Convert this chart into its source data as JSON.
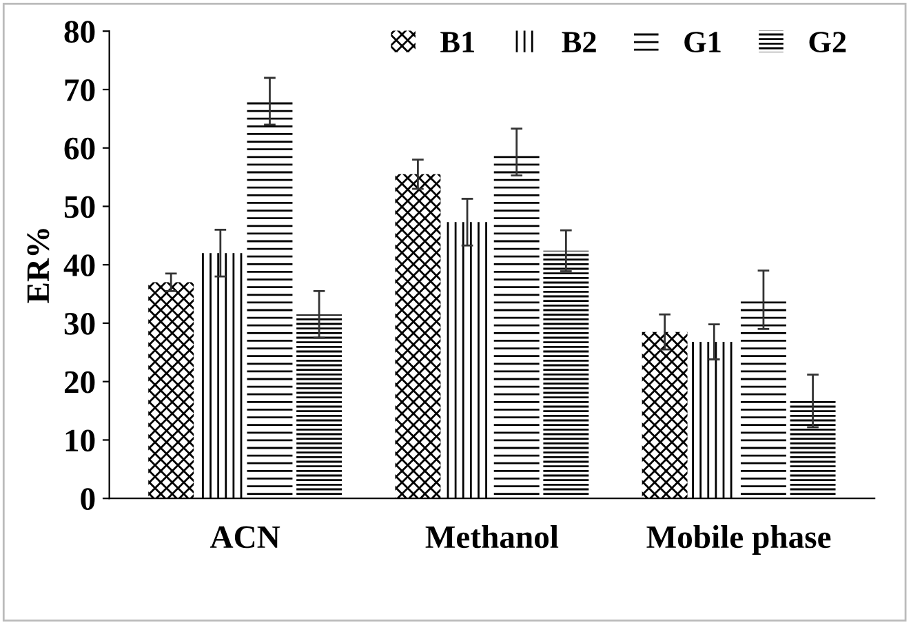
{
  "chart_data": {
    "type": "bar",
    "ylabel": "ER%",
    "categories": [
      "ACN",
      "Methanol",
      "Mobile phase"
    ],
    "series": [
      {
        "name": "B1",
        "color": "#000000",
        "values": [
          37,
          55.5,
          28.5
        ],
        "errors": [
          1.5,
          2.5,
          3
        ]
      },
      {
        "name": "B2",
        "color": "#000000",
        "values": [
          42,
          47.3,
          26.8
        ],
        "errors": [
          4,
          4,
          3
        ]
      },
      {
        "name": "G1",
        "color": "#000000",
        "values": [
          68,
          59.3,
          34
        ],
        "errors": [
          4,
          4,
          5
        ]
      },
      {
        "name": "G2",
        "color": "#000000",
        "values": [
          31.5,
          42.4,
          16.7
        ],
        "errors": [
          4,
          3.5,
          4.5
        ]
      }
    ],
    "ylim": [
      0,
      80
    ],
    "yticks": [
      0,
      10,
      20,
      30,
      40,
      50,
      60,
      70,
      80
    ],
    "grid": false,
    "legend": "top right"
  }
}
